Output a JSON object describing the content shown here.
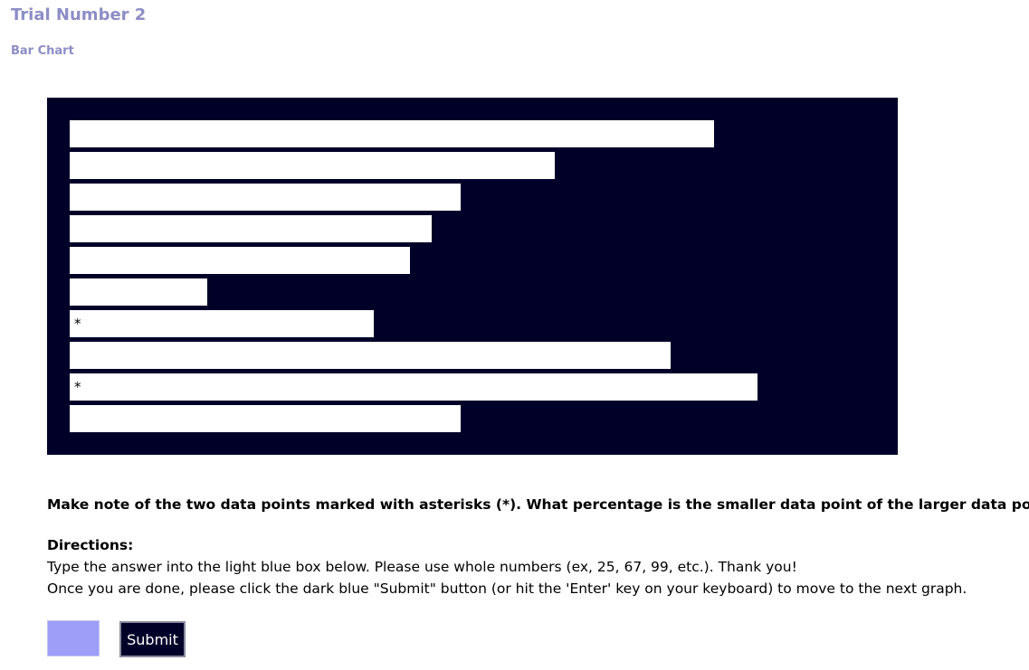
{
  "page": {
    "title": "Trial Number 2",
    "subtitle": "Bar Chart"
  },
  "colors": {
    "title": "#8d8dc6",
    "chart_background": "#000029",
    "bar_fill": "#ffffff",
    "input_background": "#9e9ef9",
    "button_background": "#000029",
    "button_text": "#ffffff"
  },
  "chart_data": {
    "type": "bar",
    "orientation": "horizontal",
    "values": [
      89,
      67,
      54,
      50,
      47,
      19,
      42,
      83,
      95,
      54
    ],
    "markers": [
      "",
      "",
      "",
      "",
      "",
      "",
      "*",
      "",
      "*",
      ""
    ],
    "xlim": [
      0,
      100
    ],
    "grid": false,
    "axes_visible": false
  },
  "question": "Make note of the two data points marked with asterisks (*). What percentage is the smaller data point of the larger data point?",
  "directions": {
    "heading": "Directions:",
    "line1": "Type the answer into the light blue box below. Please use whole numbers (ex, 25, 67, 99, etc.). Thank you!",
    "line2": "Once you are done, please click the dark blue \"Submit\" button (or hit the 'Enter' key on your keyboard) to move to the next graph."
  },
  "answer": {
    "value": ""
  },
  "submit": {
    "label": "Submit"
  }
}
